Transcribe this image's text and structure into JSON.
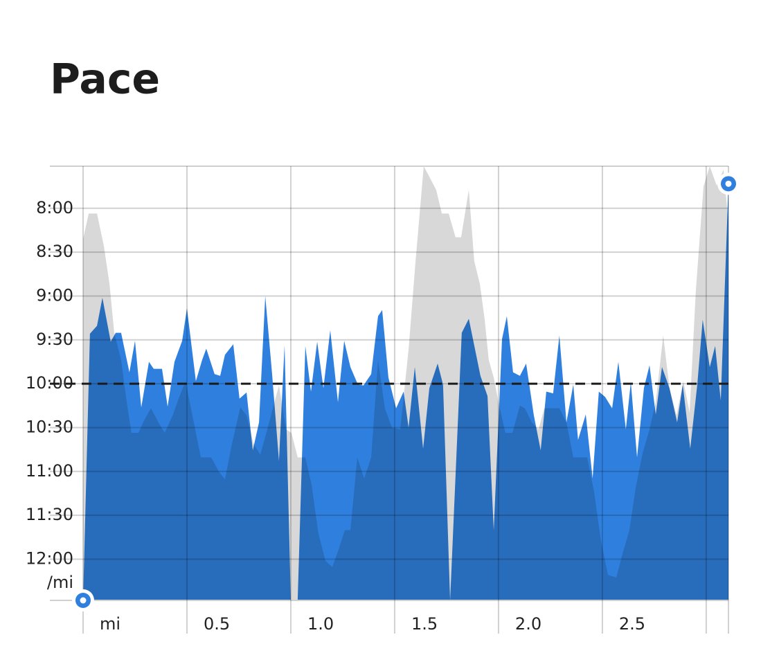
{
  "chart_data": {
    "type": "area",
    "title": "Pace",
    "y_unit_label": "/mi",
    "ylim": [
      7.52,
      12.47
    ],
    "y_reversed": true,
    "yticks": [
      {
        "value": 8,
        "label": "8:00"
      },
      {
        "value": 8.5,
        "label": "8:30"
      },
      {
        "value": 9,
        "label": "9:00"
      },
      {
        "value": 9.5,
        "label": "9:30"
      },
      {
        "value": 10,
        "label": "10:00"
      },
      {
        "value": 10.5,
        "label": "10:30"
      },
      {
        "value": 11,
        "label": "11:00"
      },
      {
        "value": 11.5,
        "label": "11:30"
      },
      {
        "value": 12,
        "label": "12:00"
      }
    ],
    "xlim": [
      -0.16,
      3.107
    ],
    "xticks": [
      {
        "value": 0,
        "label": "mi"
      },
      {
        "value": 0.5,
        "label": "0.5"
      },
      {
        "value": 1,
        "label": "1.0"
      },
      {
        "value": 1.5,
        "label": "1.5"
      },
      {
        "value": 2,
        "label": "2.0"
      },
      {
        "value": 2.5,
        "label": "2.5"
      },
      {
        "value": 3,
        "label": null
      }
    ],
    "grid": true,
    "reference_line": 10,
    "endpoint_markers": true,
    "series": [
      {
        "color": "#2f80de",
        "x": [
          0,
          0.033,
          0.067,
          0.093,
          0.133,
          0.157,
          0.183,
          0.223,
          0.25,
          0.28,
          0.317,
          0.34,
          0.38,
          0.407,
          0.44,
          0.477,
          0.5,
          0.543,
          0.573,
          0.593,
          0.633,
          0.66,
          0.683,
          0.723,
          0.753,
          0.787,
          0.817,
          0.847,
          0.877,
          0.91,
          0.943,
          0.97,
          1.0,
          1.033,
          1.07,
          1.097,
          1.127,
          1.157,
          1.19,
          1.227,
          1.257,
          1.287,
          1.323,
          1.35,
          1.387,
          1.42,
          1.44,
          1.47,
          1.507,
          1.543,
          1.567,
          1.597,
          1.637,
          1.667,
          1.707,
          1.733,
          1.767,
          1.823,
          1.857,
          1.913,
          1.947,
          1.977,
          2.017,
          2.04,
          2.07,
          2.103,
          2.133,
          2.17,
          2.203,
          2.23,
          2.263,
          2.293,
          2.327,
          2.36,
          2.383,
          2.42,
          2.453,
          2.483,
          2.513,
          2.547,
          2.577,
          2.613,
          2.637,
          2.667,
          2.7,
          2.727,
          2.757,
          2.787,
          2.823,
          2.86,
          2.887,
          2.923,
          2.957,
          2.983,
          3.017,
          3.043,
          3.07,
          3.107
        ],
        "values": [
          12.47,
          9.43,
          9.34,
          9.02,
          9.52,
          9.42,
          9.42,
          9.87,
          9.51,
          10.27,
          9.75,
          9.83,
          9.83,
          10.26,
          9.75,
          9.51,
          9.14,
          9.97,
          9.73,
          9.6,
          9.89,
          9.91,
          9.67,
          9.55,
          10.17,
          10.1,
          10.76,
          10.44,
          9.0,
          9.89,
          10.88,
          9.56,
          12.47,
          12.47,
          9.57,
          10.09,
          9.52,
          10.05,
          9.39,
          10.21,
          9.51,
          9.81,
          10.01,
          10.02,
          9.89,
          9.23,
          9.16,
          9.93,
          10.28,
          10.09,
          10.5,
          9.81,
          10.74,
          10.05,
          9.77,
          10.01,
          12.47,
          9.42,
          9.26,
          9.91,
          10.14,
          11.67,
          9.49,
          9.23,
          9.87,
          9.91,
          9.77,
          10.36,
          10.76,
          10.09,
          10.11,
          9.45,
          10.44,
          10.01,
          10.64,
          10.35,
          11.08,
          10.09,
          10.15,
          10.28,
          9.75,
          10.52,
          9.98,
          10.84,
          10.05,
          9.79,
          10.35,
          9.81,
          10.05,
          10.44,
          10.01,
          10.74,
          10.01,
          9.27,
          9.81,
          9.57,
          10.19,
          7.72
        ]
      },
      {
        "color": "#d8d8d8",
        "x": [
          0,
          0.027,
          0.067,
          0.1,
          0.127,
          0.15,
          0.183,
          0.21,
          0.233,
          0.267,
          0.293,
          0.327,
          0.367,
          0.393,
          0.433,
          0.46,
          0.493,
          0.533,
          0.567,
          0.617,
          0.653,
          0.683,
          0.717,
          0.757,
          0.787,
          0.82,
          0.853,
          0.887,
          0.917,
          0.943,
          0.977,
          1.003,
          1.033,
          1.07,
          1.1,
          1.133,
          1.167,
          1.2,
          1.233,
          1.26,
          1.287,
          1.32,
          1.353,
          1.387,
          1.42,
          1.453,
          1.487,
          1.527,
          1.567,
          1.6,
          1.64,
          1.667,
          1.7,
          1.727,
          1.76,
          1.793,
          1.82,
          1.857,
          1.883,
          1.91,
          1.933,
          1.953,
          1.977,
          2.0,
          2.033,
          2.067,
          2.103,
          2.127,
          2.16,
          2.193,
          2.22,
          2.253,
          2.293,
          2.327,
          2.36,
          2.393,
          2.427,
          2.46,
          2.493,
          2.527,
          2.567,
          2.597,
          2.63,
          2.66,
          2.693,
          2.727,
          2.757,
          2.793,
          2.823,
          2.857,
          2.89,
          2.92,
          2.95,
          2.987,
          3.017,
          3.05,
          3.083,
          3.107
        ],
        "values": [
          8.35,
          8.06,
          8.06,
          8.43,
          8.86,
          9.42,
          9.73,
          10.21,
          10.56,
          10.56,
          10.42,
          10.28,
          10.46,
          10.56,
          10.35,
          10.17,
          9.97,
          10.44,
          10.84,
          10.84,
          11.0,
          11.09,
          10.68,
          10.27,
          10.36,
          10.68,
          10.81,
          10.52,
          10.25,
          10.02,
          10.52,
          10.56,
          10.84,
          10.84,
          11.15,
          11.71,
          12.02,
          12.09,
          11.87,
          11.67,
          11.67,
          10.84,
          11.08,
          10.84,
          9.73,
          10.28,
          10.5,
          10.52,
          9.61,
          8.62,
          7.52,
          7.64,
          7.79,
          8.06,
          8.06,
          8.33,
          8.33,
          7.79,
          8.6,
          8.86,
          9.26,
          9.73,
          9.93,
          10.21,
          10.56,
          10.56,
          10.25,
          10.28,
          10.44,
          10.52,
          10.28,
          10.28,
          10.28,
          10.44,
          10.84,
          10.84,
          10.84,
          11.23,
          11.79,
          12.18,
          12.21,
          11.94,
          11.67,
          11.19,
          10.8,
          10.52,
          10.21,
          9.45,
          10.05,
          10.36,
          9.97,
          10.33,
          8.94,
          7.75,
          7.52,
          7.74,
          7.56,
          8.15
        ]
      }
    ]
  }
}
